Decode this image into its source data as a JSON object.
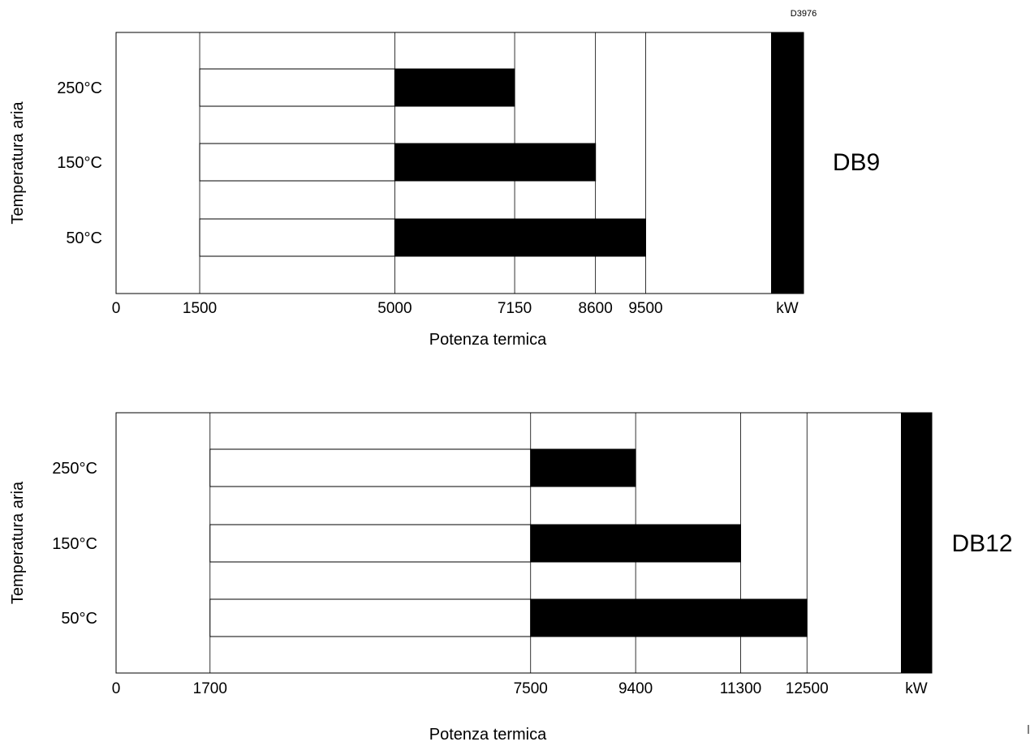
{
  "figure_code": "D3976",
  "colors": {
    "operating_range": "#000000",
    "min_range": "#ffffff",
    "frame": "#000000"
  },
  "chart_data": [
    {
      "type": "bar",
      "model": "DB9",
      "xlabel": "Potenza termica",
      "ylabel": "Temperatura aria",
      "unit_label": "kW",
      "xlim": [
        0,
        11750
      ],
      "x_ticks": [
        "0",
        "1500",
        "5000",
        "7150",
        "8600",
        "9500"
      ],
      "categories": [
        "250°C",
        "150°C",
        "50°C"
      ],
      "series": [
        {
          "start": [
            1500,
            1500,
            1500
          ],
          "end": [
            5000,
            5000,
            5000
          ]
        },
        {
          "start": [
            5000,
            5000,
            5000
          ],
          "end": [
            7150,
            8600,
            9500
          ]
        }
      ],
      "grid": true
    },
    {
      "type": "bar",
      "model": "DB12",
      "xlabel": "Potenza termica",
      "ylabel": "Temperatura aria",
      "unit_label": "kW",
      "xlim": [
        0,
        14200
      ],
      "x_ticks": [
        "0",
        "1700",
        "7500",
        "9400",
        "11300",
        "12500"
      ],
      "categories": [
        "250°C",
        "150°C",
        "50°C"
      ],
      "series": [
        {
          "start": [
            1700,
            1700,
            1700
          ],
          "end": [
            7500,
            7500,
            7500
          ]
        },
        {
          "start": [
            7500,
            7500,
            7500
          ],
          "end": [
            9400,
            11300,
            12500
          ]
        }
      ],
      "grid": true
    }
  ]
}
